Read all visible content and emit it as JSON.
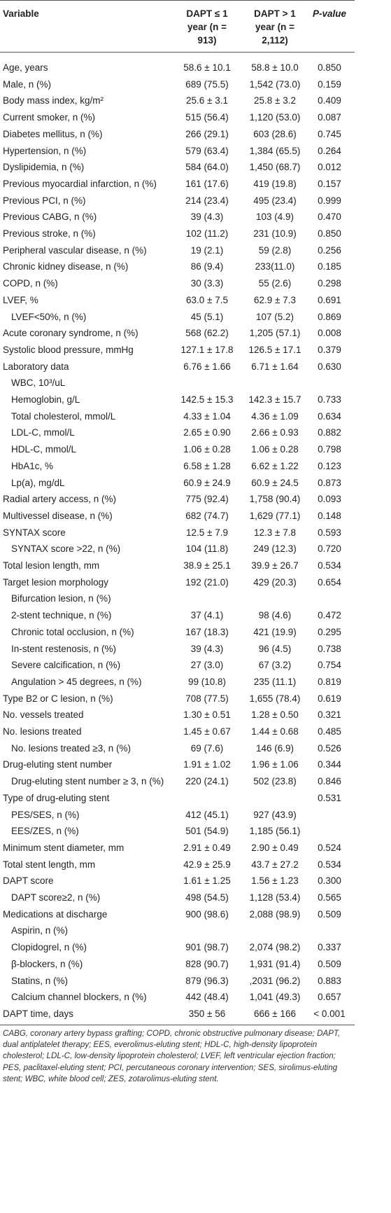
{
  "table": {
    "header": {
      "variable": "Variable",
      "le1": "DAPT ≤ 1 year (n = 913)",
      "gt1": "DAPT > 1 year (n = 2,112)",
      "p": "P-value"
    },
    "rows": [
      {
        "variable": "Age, years",
        "le1": "58.6 ± 10.1",
        "gt1": "58.8 ± 10.0",
        "p": "0.850"
      },
      {
        "variable": "Male, n (%)",
        "le1": "689 (75.5)",
        "gt1": "1,542 (73.0)",
        "p": "0.159"
      },
      {
        "variable": "Body mass index, kg/m²",
        "le1": "25.6 ± 3.1",
        "gt1": "25.8 ± 3.2",
        "p": "0.409"
      },
      {
        "variable": "Current smoker, n (%)",
        "le1": "515 (56.4)",
        "gt1": "1,120 (53.0)",
        "p": "0.087"
      },
      {
        "variable": "Diabetes mellitus, n (%)",
        "le1": "266 (29.1)",
        "gt1": "603 (28.6)",
        "p": "0.745"
      },
      {
        "variable": "Hypertension, n (%)",
        "le1": "579 (63.4)",
        "gt1": "1,384 (65.5)",
        "p": "0.264"
      },
      {
        "variable": "Dyslipidemia, n (%)",
        "le1": "584 (64.0)",
        "gt1": "1,450 (68.7)",
        "p": "0.012"
      },
      {
        "variable": "Previous myocardial infarction, n (%)",
        "le1": "161 (17.6)",
        "gt1": "419 (19.8)",
        "p": "0.157"
      },
      {
        "variable": "Previous PCI, n (%)",
        "le1": "214 (23.4)",
        "gt1": "495 (23.4)",
        "p": "0.999"
      },
      {
        "variable": "Previous CABG, n (%)",
        "le1": "39 (4.3)",
        "gt1": "103 (4.9)",
        "p": "0.470"
      },
      {
        "variable": "Previous stroke, n (%)",
        "le1": "102 (11.2)",
        "gt1": "231 (10.9)",
        "p": "0.850"
      },
      {
        "variable": "Peripheral vascular disease, n (%)",
        "le1": "19 (2.1)",
        "gt1": "59 (2.8)",
        "p": "0.256"
      },
      {
        "variable": "Chronic kidney disease, n (%)",
        "le1": "86 (9.4)",
        "gt1": "233(11.0)",
        "p": "0.185"
      },
      {
        "variable": "COPD, n (%)",
        "le1": "30 (3.3)",
        "gt1": "55 (2.6)",
        "p": "0.298"
      },
      {
        "variable": "LVEF, %",
        "le1": "63.0 ± 7.5",
        "gt1": "62.9 ± 7.3",
        "p": "0.691"
      },
      {
        "variable": "LVEF<50%, n (%)",
        "indent": true,
        "le1": "45 (5.1)",
        "gt1": "107 (5.2)",
        "p": "0.869"
      },
      {
        "variable": "Acute coronary syndrome, n (%)",
        "le1": "568 (62.2)",
        "gt1": "1,205 (57.1)",
        "p": "0.008"
      },
      {
        "variable": "Systolic blood pressure, mmHg",
        "le1": "127.1 ± 17.8",
        "gt1": "126.5 ± 17.1",
        "p": "0.379"
      },
      {
        "variable": "Laboratory data",
        "le1": "6.76 ± 1.66",
        "gt1": "6.71 ± 1.64",
        "p": "0.630"
      },
      {
        "variable": "WBC, 10³/uL",
        "indent": true
      },
      {
        "variable": "Hemoglobin, g/L",
        "indent": true,
        "le1": "142.5 ± 15.3",
        "gt1": "142.3 ± 15.7",
        "p": "0.733"
      },
      {
        "variable": "Total cholesterol, mmol/L",
        "indent": true,
        "le1": "4.33 ± 1.04",
        "gt1": "4.36 ± 1.09",
        "p": "0.634"
      },
      {
        "variable": "LDL-C, mmol/L",
        "indent": true,
        "le1": "2.65 ± 0.90",
        "gt1": "2.66 ± 0.93",
        "p": "0.882"
      },
      {
        "variable": "HDL-C, mmol/L",
        "indent": true,
        "le1": "1.06 ± 0.28",
        "gt1": "1.06 ± 0.28",
        "p": "0.798"
      },
      {
        "variable": "HbA1c, %",
        "indent": true,
        "le1": "6.58 ± 1.28",
        "gt1": "6.62 ± 1.22",
        "p": "0.123"
      },
      {
        "variable": "Lp(a), mg/dL",
        "indent": true,
        "le1": "60.9 ± 24.9",
        "gt1": "60.9 ± 24.5",
        "p": "0.873"
      },
      {
        "variable": "Radial artery access, n (%)",
        "le1": "775 (92.4)",
        "gt1": "1,758 (90.4)",
        "p": "0.093"
      },
      {
        "variable": "Multivessel disease, n (%)",
        "le1": "682 (74.7)",
        "gt1": "1,629 (77.1)",
        "p": "0.148"
      },
      {
        "variable": "SYNTAX score",
        "le1": "12.5 ± 7.9",
        "gt1": "12.3 ± 7.8",
        "p": "0.593"
      },
      {
        "variable": "SYNTAX score >22, n (%)",
        "indent": true,
        "le1": "104 (11.8)",
        "gt1": "249 (12.3)",
        "p": "0.720"
      },
      {
        "variable": "Total lesion length, mm",
        "le1": "38.9 ± 25.1",
        "gt1": "39.9 ± 26.7",
        "p": "0.534"
      },
      {
        "variable": "Target lesion morphology",
        "le1": "192 (21.0)",
        "gt1": "429 (20.3)",
        "p": "0.654"
      },
      {
        "variable": "Bifurcation lesion, n (%)",
        "indent": true
      },
      {
        "variable": "2-stent technique, n (%)",
        "indent": true,
        "le1": "37 (4.1)",
        "gt1": "98 (4.6)",
        "p": "0.472"
      },
      {
        "variable": "Chronic total occlusion, n (%)",
        "indent": true,
        "le1": "167 (18.3)",
        "gt1": "421 (19.9)",
        "p": "0.295"
      },
      {
        "variable": "In-stent restenosis, n (%)",
        "indent": true,
        "le1": "39 (4.3)",
        "gt1": "96 (4.5)",
        "p": "0.738"
      },
      {
        "variable": "Severe calcification, n (%)",
        "indent": true,
        "le1": "27 (3.0)",
        "gt1": "67 (3.2)",
        "p": "0.754"
      },
      {
        "variable": "Angulation > 45 degrees, n (%)",
        "indent": true,
        "le1": "99 (10.8)",
        "gt1": "235 (11.1)",
        "p": "0.819"
      },
      {
        "variable": "Type B2 or C lesion, n (%)",
        "le1": "708 (77.5)",
        "gt1": "1,655 (78.4)",
        "p": "0.619"
      },
      {
        "variable": "No. vessels treated",
        "le1": "1.30 ± 0.51",
        "gt1": "1.28 ± 0.50",
        "p": "0.321"
      },
      {
        "variable": "No. lesions treated",
        "le1": "1.45 ± 0.67",
        "gt1": "1.44 ± 0.68",
        "p": "0.485"
      },
      {
        "variable": "No. lesions treated ≥3, n (%)",
        "indent": true,
        "le1": "69 (7.6)",
        "gt1": "146 (6.9)",
        "p": "0.526"
      },
      {
        "variable": "Drug-eluting stent number",
        "le1": "1.91 ± 1.02",
        "gt1": "1.96 ± 1.06",
        "p": "0.344"
      },
      {
        "variable": "Drug-eluting stent number ≥ 3, n (%)",
        "indent": true,
        "le1": "220 (24.1)",
        "gt1": "502 (23.8)",
        "p": "0.846"
      },
      {
        "variable": "Type of drug-eluting stent",
        "p": "0.531"
      },
      {
        "variable": "PES/SES, n (%)",
        "indent": true,
        "le1": "412 (45.1)",
        "gt1": "927 (43.9)"
      },
      {
        "variable": "EES/ZES, n (%)",
        "indent": true,
        "le1": "501 (54.9)",
        "gt1": "1,185 (56.1)"
      },
      {
        "variable": "Minimum stent diameter, mm",
        "le1": "2.91 ± 0.49",
        "gt1": "2.90 ± 0.49",
        "p": "0.524"
      },
      {
        "variable": "Total stent length, mm",
        "le1": "42.9 ± 25.9",
        "gt1": "43.7 ± 27.2",
        "p": "0.534"
      },
      {
        "variable": "DAPT score",
        "le1": "1.61 ± 1.25",
        "gt1": "1.56 ± 1.23",
        "p": "0.300"
      },
      {
        "variable": "DAPT score≥2, n (%)",
        "indent": true,
        "le1": "498 (54.5)",
        "gt1": "1,128 (53.4)",
        "p": "0.565"
      },
      {
        "variable": "Medications at discharge",
        "le1": "900 (98.6)",
        "gt1": "2,088 (98.9)",
        "p": "0.509"
      },
      {
        "variable": "Aspirin, n (%)",
        "indent": true
      },
      {
        "variable": "Clopidogrel, n (%)",
        "indent": true,
        "le1": "901 (98.7)",
        "gt1": "2,074 (98.2)",
        "p": "0.337"
      },
      {
        "variable": "β-blockers, n (%)",
        "indent": true,
        "le1": "828 (90.7)",
        "gt1": "1,931 (91.4)",
        "p": "0.509"
      },
      {
        "variable": "Statins, n (%)",
        "indent": true,
        "le1": "879 (96.3)",
        "gt1": ",2031 (96.2)",
        "p": "0.883"
      },
      {
        "variable": "Calcium channel blockers, n (%)",
        "indent": true,
        "le1": "442 (48.4)",
        "gt1": "1,041 (49.3)",
        "p": "0.657"
      },
      {
        "variable": "DAPT time, days",
        "le1": "350 ± 56",
        "gt1": "666 ± 166",
        "p": "< 0.001"
      }
    ],
    "footnote": "CABG, coronary artery bypass grafting; COPD, chronic obstructive pulmonary disease; DAPT, dual antiplatelet therapy; EES, everolimus-eluting stent; HDL-C, high-density lipoprotein cholesterol; LDL-C, low-density lipoprotein cholesterol; LVEF, left ventricular ejection fraction; PES, paclitaxel-eluting stent; PCI, percutaneous coronary intervention; SES, sirolimus-eluting stent; WBC, white blood cell; ZES, zotarolimus-eluting stent."
  }
}
